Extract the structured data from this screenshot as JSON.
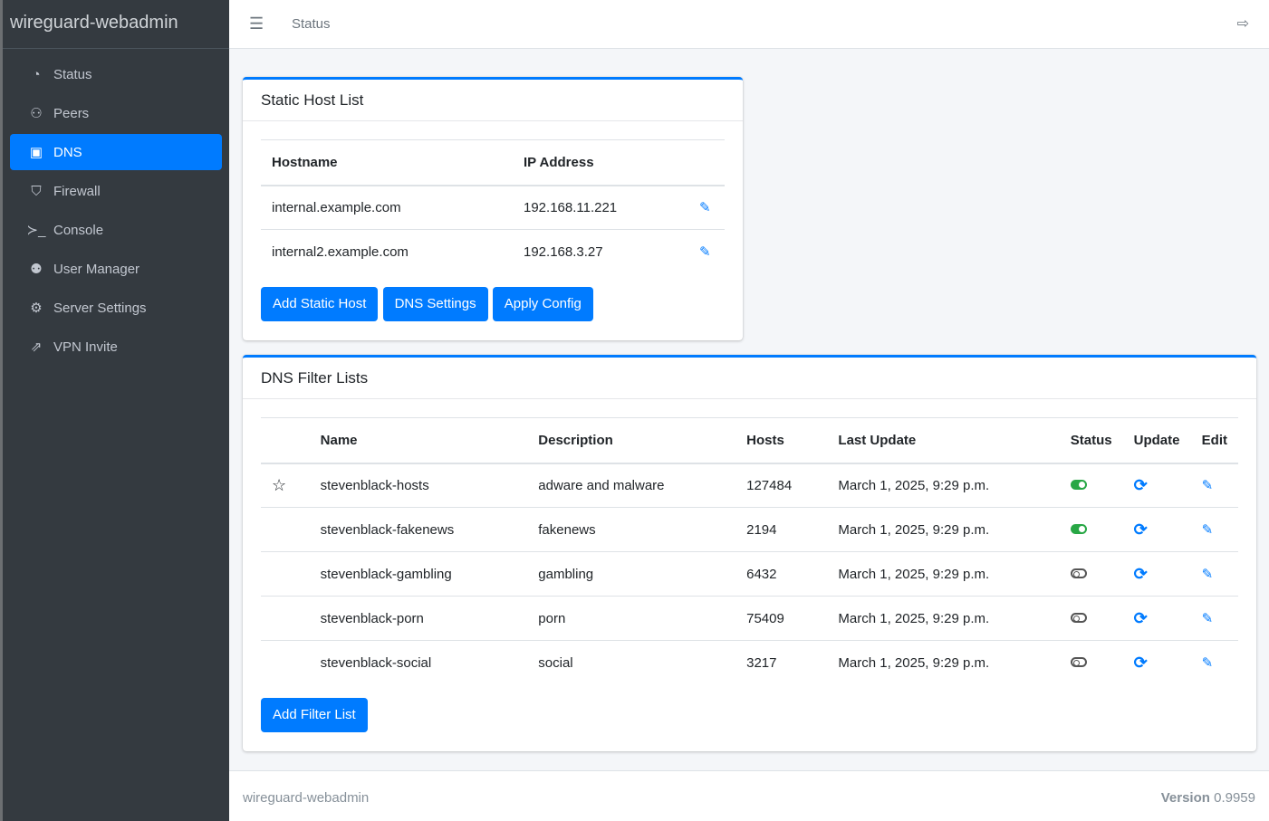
{
  "brand": "wireguard-webadmin",
  "sidebar": {
    "items": [
      {
        "label": "Status",
        "icon": "gauge-icon"
      },
      {
        "label": "Peers",
        "icon": "users-cog-icon"
      },
      {
        "label": "DNS",
        "icon": "address-book-icon",
        "active": true
      },
      {
        "label": "Firewall",
        "icon": "shield-icon"
      },
      {
        "label": "Console",
        "icon": "terminal-icon"
      },
      {
        "label": "User Manager",
        "icon": "users-icon"
      },
      {
        "label": "Server Settings",
        "icon": "cogs-icon"
      },
      {
        "label": "VPN Invite",
        "icon": "share-icon"
      }
    ]
  },
  "topbar": {
    "breadcrumb": "Status"
  },
  "static_hosts": {
    "title": "Static Host List",
    "headers": [
      "Hostname",
      "IP Address"
    ],
    "rows": [
      [
        "internal.example.com",
        "192.168.11.221"
      ],
      [
        "internal2.example.com",
        "192.168.3.27"
      ]
    ],
    "buttons": [
      "Add Static Host",
      "DNS Settings",
      "Apply Config"
    ]
  },
  "filter_lists": {
    "title": "DNS Filter Lists",
    "headers": [
      "",
      "Name",
      "Description",
      "Hosts",
      "Last Update",
      "Status",
      "Update",
      "Edit"
    ],
    "rows": [
      {
        "star": true,
        "name": "stevenblack-hosts",
        "desc": "adware and malware",
        "hosts": "127484",
        "updated": "March 1, 2025, 9:29 p.m.",
        "enabled": true
      },
      {
        "star": false,
        "name": "stevenblack-fakenews",
        "desc": "fakenews",
        "hosts": "2194",
        "updated": "March 1, 2025, 9:29 p.m.",
        "enabled": true
      },
      {
        "star": false,
        "name": "stevenblack-gambling",
        "desc": "gambling",
        "hosts": "6432",
        "updated": "March 1, 2025, 9:29 p.m.",
        "enabled": false
      },
      {
        "star": false,
        "name": "stevenblack-porn",
        "desc": "porn",
        "hosts": "75409",
        "updated": "March 1, 2025, 9:29 p.m.",
        "enabled": false
      },
      {
        "star": false,
        "name": "stevenblack-social",
        "desc": "social",
        "hosts": "3217",
        "updated": "March 1, 2025, 9:29 p.m.",
        "enabled": false
      }
    ],
    "add_button": "Add Filter List"
  },
  "footer": {
    "left": "wireguard-webadmin",
    "version_label": "Version",
    "version": "0.9959"
  },
  "colors": {
    "accent": "#007bff",
    "sidebar": "#343a40",
    "enabled": "#28a745"
  }
}
